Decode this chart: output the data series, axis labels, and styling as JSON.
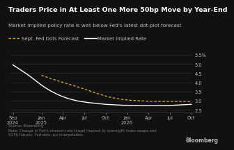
{
  "title": "Traders Price in At Least One More 50bp Move by Year-End",
  "subtitle": "Market implied policy rate is well below Fed's latest dot-plot forecast",
  "legend": [
    "Sept. Fed Dots Forecast",
    "Market Implied Rate"
  ],
  "background_color": "#111111",
  "text_color": "#bbbbbb",
  "source_text": "Source: Bloomberg\nNote: Change in Fed's interest-rate target implied by overnight index swaps and\nSOFR futures. Fed dots use interpolation.",
  "bloomberg_label": "Bloomberg",
  "ylim": [
    2.35,
    5.75
  ],
  "yticks": [
    2.5,
    3.0,
    3.5,
    4.0,
    4.5,
    5.0,
    5.5
  ],
  "ytick_labels": [
    "2.5",
    "3.0",
    "3.5",
    "4.0",
    "4.5",
    "5.0",
    "5.5%"
  ],
  "x_tick_labels": [
    "Sep\n2024",
    "Jan\n2025",
    "Apr",
    "Jul",
    "Oct",
    "Jan\n2026",
    "Apr",
    "Jul",
    "Oct"
  ],
  "market_implied_x": [
    0,
    0.5,
    1,
    1.5,
    2,
    2.5,
    3,
    3.5,
    4,
    4.5,
    5,
    5.5,
    6,
    6.5,
    7,
    7.5,
    8,
    8.5,
    9,
    9.5,
    10,
    10.5,
    11,
    11.5,
    12,
    12.5,
    13,
    13.5,
    14,
    14.5,
    15,
    15.5,
    16,
    16.5,
    17,
    17.5,
    18,
    18.5,
    19,
    19.5,
    20,
    20.5,
    21,
    21.5,
    22,
    22.5,
    23,
    23.5,
    24,
    24.5,
    25
  ],
  "market_implied_y": [
    4.95,
    4.83,
    4.7,
    4.57,
    4.44,
    4.3,
    4.15,
    4.0,
    3.85,
    3.72,
    3.6,
    3.49,
    3.39,
    3.3,
    3.22,
    3.15,
    3.09,
    3.04,
    2.99,
    2.96,
    2.93,
    2.9,
    2.88,
    2.86,
    2.84,
    2.82,
    2.8,
    2.79,
    2.78,
    2.77,
    2.76,
    2.75,
    2.75,
    2.74,
    2.74,
    2.74,
    2.73,
    2.73,
    2.73,
    2.73,
    2.73,
    2.73,
    2.73,
    2.74,
    2.74,
    2.75,
    2.76,
    2.77,
    2.78,
    2.79,
    2.8
  ],
  "fed_dots_x": [
    4,
    4.5,
    5,
    5.5,
    6,
    6.5,
    7,
    7.5,
    8,
    8.5,
    9,
    9.5,
    10,
    10.5,
    11,
    11.5,
    12,
    12.5,
    13,
    13.5,
    14,
    14.5,
    15,
    15.5,
    16,
    16.5,
    17,
    17.5,
    18,
    18.5,
    19,
    19.5,
    20,
    20.5,
    21,
    21.5,
    22,
    22.5,
    23,
    23.5,
    24,
    24.5,
    25
  ],
  "fed_dots_y": [
    4.38,
    4.32,
    4.25,
    4.18,
    4.12,
    4.06,
    4.0,
    3.94,
    3.88,
    3.82,
    3.76,
    3.7,
    3.64,
    3.57,
    3.5,
    3.43,
    3.37,
    3.31,
    3.25,
    3.2,
    3.16,
    3.12,
    3.09,
    3.06,
    3.04,
    3.02,
    3.01,
    3.0,
    2.99,
    2.98,
    2.97,
    2.97,
    2.96,
    2.96,
    2.96,
    2.96,
    2.96,
    2.96,
    2.96,
    2.96,
    2.96,
    2.96,
    2.96
  ],
  "x_tick_positions": [
    0,
    4,
    7,
    10,
    13,
    16,
    19,
    22,
    25
  ],
  "market_line_color": "#ffffff",
  "fed_dots_color": "#d4aa00",
  "grid_color": "#333333",
  "title_color": "#ffffff",
  "title_fontsize": 6.8,
  "subtitle_fontsize": 5.2,
  "legend_fontsize": 5.0,
  "tick_fontsize": 4.8,
  "source_fontsize": 3.8
}
